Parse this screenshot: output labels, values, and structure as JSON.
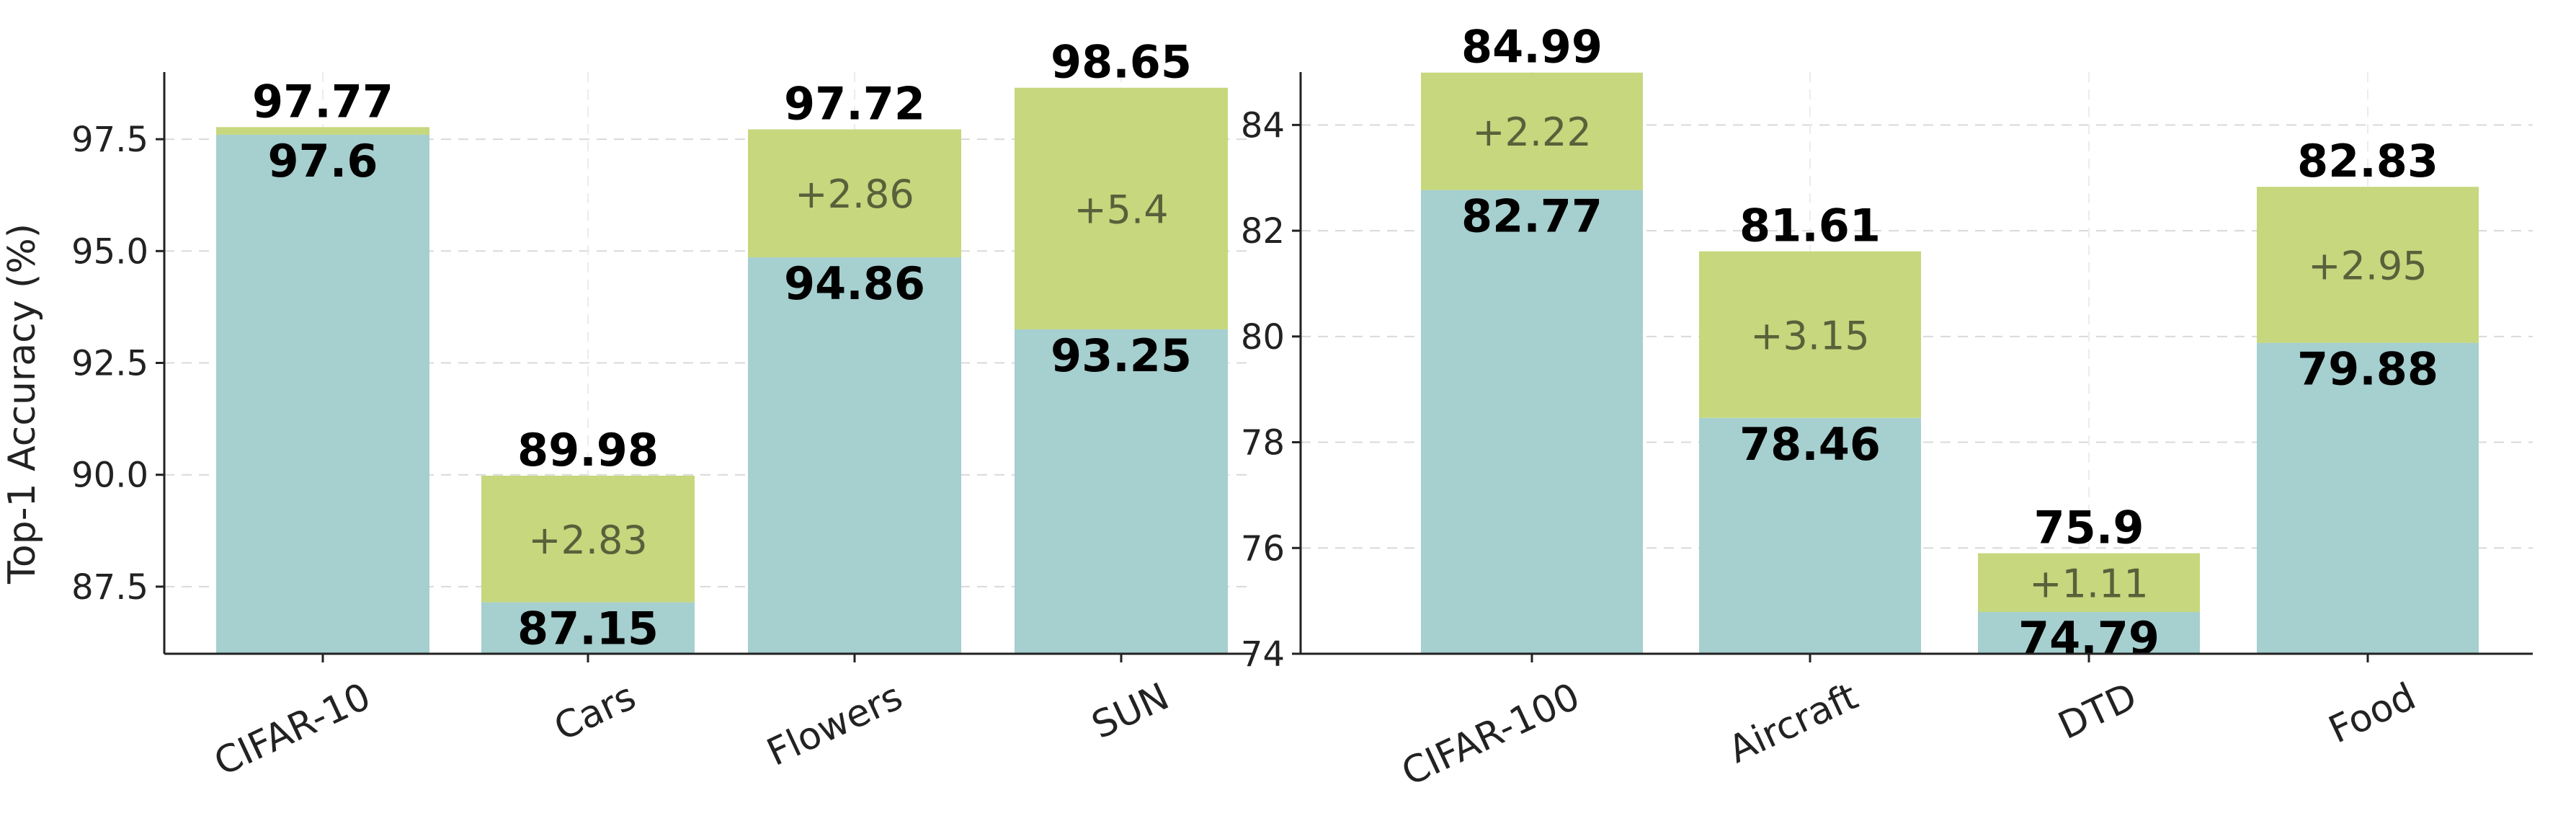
{
  "colors": {
    "base": "#a6cfcf",
    "gain": "#c6d77e",
    "axis": "#222222",
    "grid": "#d9d9d9"
  },
  "chart_data": [
    {
      "type": "bar",
      "stacked": true,
      "ylabel": "Top-1 Accuracy (%)",
      "ylim": [
        86,
        99
      ],
      "yticks": [
        "87.5",
        "90.0",
        "92.5",
        "95.0",
        "97.5"
      ],
      "grid": true,
      "categories": [
        "CIFAR-10",
        "Cars",
        "Flowers",
        "SUN"
      ],
      "base": [
        97.6,
        87.15,
        94.86,
        93.25
      ],
      "gain": [
        0.17,
        2.83,
        2.86,
        5.4
      ],
      "totals": [
        97.77,
        89.98,
        97.72,
        98.65
      ],
      "base_labels": [
        "97.6",
        "87.15",
        "94.86",
        "93.25"
      ],
      "gain_labels": [
        "",
        "+2.83",
        "+2.86",
        "+5.4"
      ],
      "total_labels": [
        "97.77",
        "89.98",
        "97.72",
        "98.65"
      ]
    },
    {
      "type": "bar",
      "stacked": true,
      "ylabel": "",
      "ylim": [
        74,
        85
      ],
      "yticks": [
        "74",
        "76",
        "78",
        "80",
        "82",
        "84"
      ],
      "grid": true,
      "categories": [
        "CIFAR-100",
        "Aircraft",
        "DTD",
        "Food"
      ],
      "base": [
        82.77,
        78.46,
        74.79,
        79.88
      ],
      "gain": [
        2.22,
        3.15,
        1.11,
        2.95
      ],
      "totals": [
        84.99,
        81.61,
        75.9,
        82.83
      ],
      "base_labels": [
        "82.77",
        "78.46",
        "74.79",
        "79.88"
      ],
      "gain_labels": [
        "+2.22",
        "+3.15",
        "+1.11",
        "+2.95"
      ],
      "total_labels": [
        "84.99",
        "81.61",
        "75.9",
        "82.83"
      ]
    }
  ]
}
